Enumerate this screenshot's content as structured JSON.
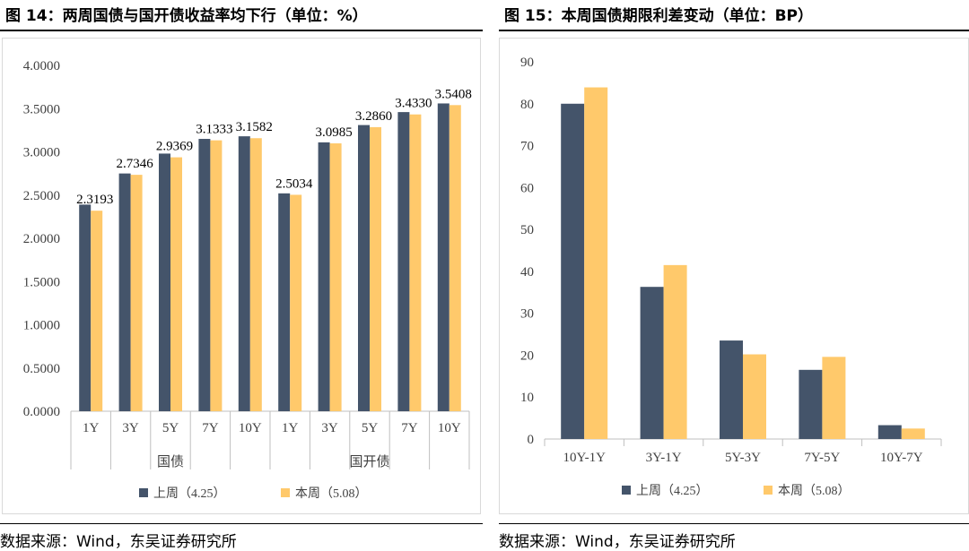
{
  "figures": [
    {
      "title": "图 14：两周国债与国开债收益率均下行（单位：%）",
      "source": "数据来源：Wind，东吴证券研究所"
    },
    {
      "title": "图 15：本周国债期限利差变动（单位：BP）",
      "source": "数据来源：Wind，东吴证券研究所"
    }
  ],
  "chart_data": [
    {
      "type": "bar",
      "categories": [
        "1Y",
        "3Y",
        "5Y",
        "7Y",
        "10Y",
        "1Y",
        "3Y",
        "5Y",
        "7Y",
        "10Y"
      ],
      "groups": [
        {
          "label": "国债",
          "categories": [
            "1Y",
            "3Y",
            "5Y",
            "7Y",
            "10Y"
          ]
        },
        {
          "label": "国开债",
          "categories": [
            "1Y",
            "3Y",
            "5Y",
            "7Y",
            "10Y"
          ]
        }
      ],
      "series": [
        {
          "name": "上周（4.25）",
          "color": "#44546a",
          "values": [
            2.39,
            2.75,
            2.98,
            3.15,
            3.18,
            2.52,
            3.11,
            3.31,
            3.46,
            3.56
          ]
        },
        {
          "name": "本周（5.08）",
          "color": "#ffc96b",
          "values": [
            2.3193,
            2.7346,
            2.9369,
            3.1333,
            3.1582,
            2.5034,
            3.0985,
            3.286,
            3.433,
            3.5408
          ],
          "labels": [
            "2.3193",
            "2.7346",
            "2.9369",
            "3.1333",
            "3.1582",
            "2.5034",
            "3.0985",
            "3.2860",
            "3.4330",
            "3.5408"
          ]
        }
      ],
      "ylim": [
        0,
        4
      ],
      "yticks": [
        "0.0000",
        "0.5000",
        "1.0000",
        "1.5000",
        "2.0000",
        "2.5000",
        "3.0000",
        "3.5000",
        "4.0000"
      ],
      "legend": "bottom",
      "grid": false
    },
    {
      "type": "bar",
      "categories": [
        "10Y-1Y",
        "3Y-1Y",
        "5Y-3Y",
        "7Y-5Y",
        "10Y-7Y"
      ],
      "series": [
        {
          "name": "上周（4.25）",
          "color": "#44546a",
          "values": [
            80,
            36.3,
            23.5,
            16.5,
            3.3
          ]
        },
        {
          "name": "本周（5.08）",
          "color": "#ffc96b",
          "values": [
            83.9,
            41.5,
            20.2,
            19.6,
            2.5
          ]
        }
      ],
      "ylim": [
        0,
        90
      ],
      "yticks": [
        "0",
        "10",
        "20",
        "30",
        "40",
        "50",
        "60",
        "70",
        "80",
        "90"
      ],
      "legend": "bottom",
      "grid": false
    }
  ]
}
